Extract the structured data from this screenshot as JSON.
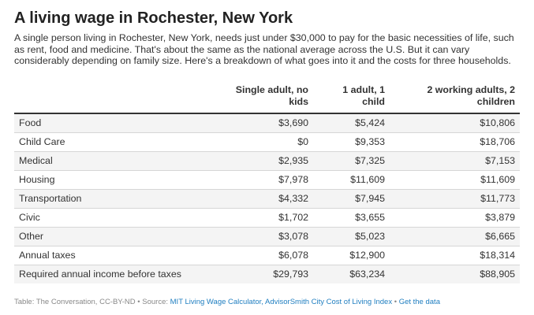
{
  "title": "A living wage in Rochester, New York",
  "subtitle": "A single person living in Rochester, New York, needs just under $30,000 to pay for the basic necessities of life, such as rent, food and medicine. That's about the same as the national average across the U.S. But it can vary considerably depending on family size. Here's a breakdown of what goes into it and the costs for three households.",
  "footer": {
    "prefix": "Table: The Conversation, CC-BY-ND • Source: ",
    "source_link": "MIT Living Wage Calculator, AdvisorSmith City Cost of Living Index",
    "separator": " • ",
    "data_link": "Get the data"
  },
  "chart_data": {
    "type": "table",
    "columns": [
      "",
      "Single adult, no kids",
      "1 adult, 1 child",
      "2 working adults, 2 children"
    ],
    "rows": [
      [
        "Food",
        "$3,690",
        "$5,424",
        "$10,806"
      ],
      [
        "Child Care",
        "$0",
        "$9,353",
        "$18,706"
      ],
      [
        "Medical",
        "$2,935",
        "$7,325",
        "$7,153"
      ],
      [
        "Housing",
        "$7,978",
        "$11,609",
        "$11,609"
      ],
      [
        "Transportation",
        "$4,332",
        "$7,945",
        "$11,773"
      ],
      [
        "Civic",
        "$1,702",
        "$3,655",
        "$3,879"
      ],
      [
        "Other",
        "$3,078",
        "$5,023",
        "$6,665"
      ],
      [
        "Annual taxes",
        "$6,078",
        "$12,900",
        "$18,314"
      ],
      [
        "Required annual income before taxes",
        "$29,793",
        "$63,234",
        "$88,905"
      ]
    ]
  }
}
